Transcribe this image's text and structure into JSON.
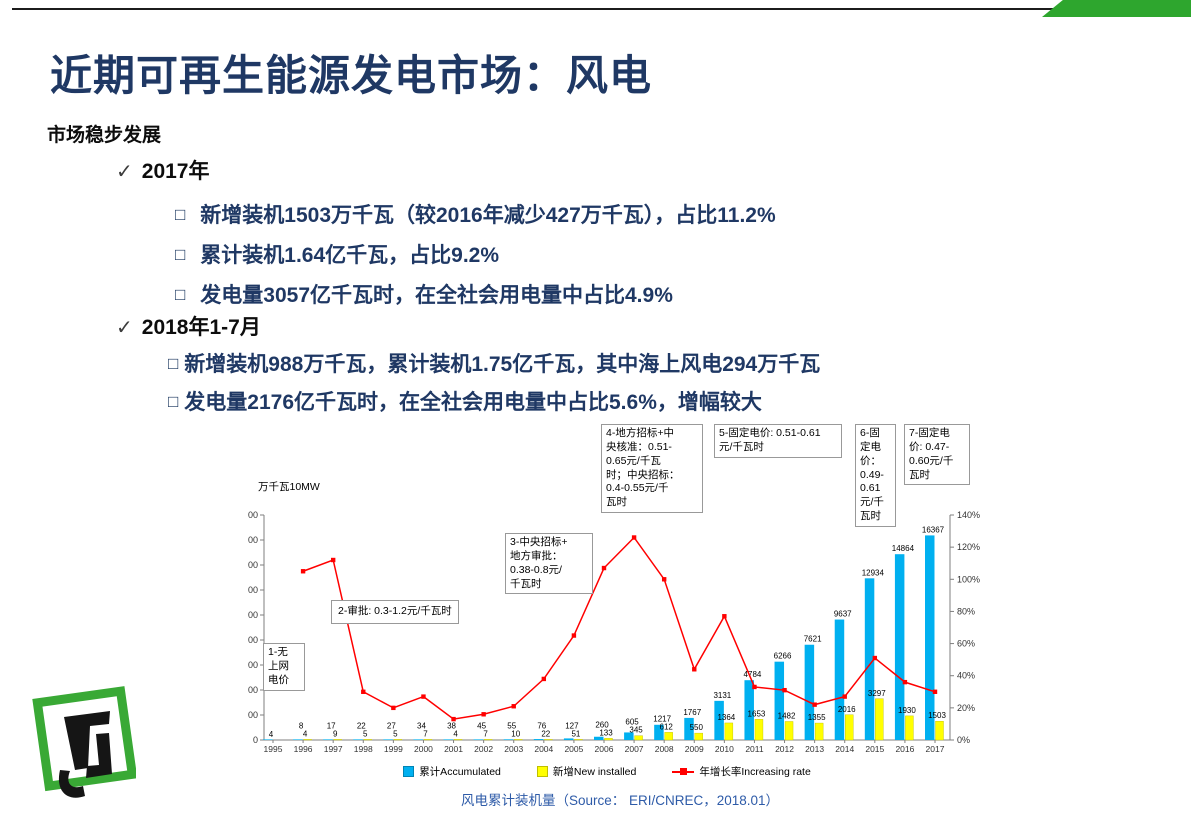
{
  "colors": {
    "accent_green": "#2EA62E",
    "title_navy": "#1F3864",
    "bullet_navy": "#1F3864",
    "caption_blue": "#2E5BA8",
    "bar_cyan": "#00B0F0",
    "bar_yellow": "#FFFF00",
    "line_red": "#FF0000"
  },
  "icons": {
    "check": "✓",
    "square_bullet": "□"
  },
  "header": {
    "title": "近期可再生能源发电市场：风电"
  },
  "content": {
    "section_title": "市场稳步发展",
    "groups": [
      {
        "label": "2017年",
        "items": [
          "新增装机1503万千瓦（较2016年减少427万千瓦），占比11.2%",
          "累计装机1.64亿千瓦，占比9.2%",
          "发电量3057亿千瓦时，在全社会用电量中占比4.9%"
        ]
      },
      {
        "label": "2018年1-7月",
        "items": [
          "新增装机988万千瓦，累计装机1.75亿千瓦，其中海上风电294万千瓦",
          "发电量2176亿千瓦时，在全社会用电量中占比5.6%，增幅较大"
        ]
      }
    ]
  },
  "chart_data": {
    "type": "bar+line",
    "unit_label": "万千瓦10MW",
    "categories": [
      1995,
      1996,
      1997,
      1998,
      1999,
      2000,
      2001,
      2002,
      2003,
      2004,
      2005,
      2006,
      2007,
      2008,
      2009,
      2010,
      2011,
      2012,
      2013,
      2014,
      2015,
      2016,
      2017
    ],
    "series": [
      {
        "name": "累计Accumulated",
        "type": "bar",
        "axis": "left",
        "color": "#00B0F0",
        "values": [
          4,
          8,
          17,
          22,
          27,
          34,
          38,
          45,
          55,
          76,
          127,
          260,
          605,
          1217,
          1767,
          3131,
          4784,
          6266,
          7621,
          9637,
          12934,
          14864,
          16367
        ]
      },
      {
        "name": "新增New installed",
        "type": "bar",
        "axis": "left",
        "color": "#FFFF00",
        "values": [
          null,
          4,
          9,
          5,
          5,
          7,
          4,
          7,
          10,
          22,
          51,
          133,
          345,
          612,
          550,
          1364,
          1653,
          1482,
          1355,
          2016,
          3297,
          1930,
          1503
        ]
      },
      {
        "name": "年增长率Increasing rate",
        "type": "line",
        "axis": "right",
        "unit": "%",
        "color": "#FF0000",
        "values": [
          null,
          105,
          112,
          30,
          20,
          27,
          13,
          16,
          21,
          38,
          65,
          107,
          126,
          100,
          44,
          77,
          33,
          31,
          22,
          27,
          51,
          36,
          30
        ]
      }
    ],
    "left_axis": {
      "min": 0,
      "max": 18000,
      "step": 2000
    },
    "right_axis": {
      "min": 0,
      "max": 140,
      "step": 20,
      "suffix": "%"
    },
    "grid": "off",
    "legend_position": "bottom",
    "annotations": [
      "1-无\n上网\n电价",
      "2-审批: 0.3-1.2元/千瓦时",
      "3-中央招标+\n地方审批：\n0.38-0.8元/\n千瓦时",
      "4-地方招标+中\n央核准：0.51-\n0.65元/千瓦\n时；中央招标：\n0.4-0.55元/千\n瓦时",
      "5-固定电价: 0.51-0.61\n元/千瓦时",
      "6-固\n定电\n价：\n0.49-\n0.61\n元/千\n瓦时",
      "7-固定电\n价: 0.47-\n0.60元/千\n瓦时"
    ],
    "caption": "风电累计装机量（Source： ERI/CNREC，2018.01）"
  }
}
